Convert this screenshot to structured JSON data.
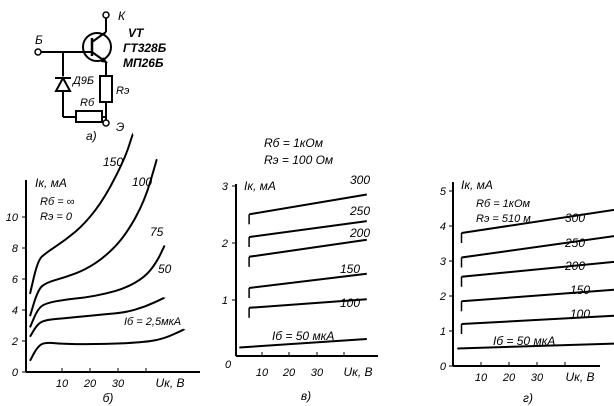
{
  "circuit": {
    "base_terminal": "Б",
    "collector_terminal": "К",
    "emitter_terminal": "Э",
    "transistor_label": "VT",
    "transistor_types": [
      "ГТ328Б",
      "МП26Б"
    ],
    "diode_label": "Д9Б",
    "rb_label": "Rб",
    "re_label": "Rэ",
    "caption": "а)"
  },
  "panels": [
    {
      "caption": "б)",
      "ylabel": "Iк, мА",
      "xlabel": "Uк, В",
      "param_lines": [
        "Rб = ∞",
        "Rэ = 0"
      ],
      "y_ticks": [
        "0",
        "2",
        "4",
        "6",
        "8",
        "10"
      ],
      "x_ticks": [
        "10",
        "20",
        "30"
      ],
      "x_origin_label": "",
      "curve_labels": [
        "150",
        "100",
        "75",
        "50",
        "Iб = 2,5мкА"
      ]
    },
    {
      "caption": "в)",
      "ylabel": "Iк, мА",
      "xlabel": "Uк, В",
      "param_lines": [
        "Rб = 1кОм",
        "Rэ = 100 Ом"
      ],
      "y_ticks": [
        "1",
        "2",
        "3"
      ],
      "x_ticks": [
        "10",
        "20",
        "30"
      ],
      "x_origin_label": "0",
      "curve_labels": [
        "300",
        "250",
        "200",
        "150",
        "100",
        "Iб = 50 мкА"
      ]
    },
    {
      "caption": "г)",
      "ylabel": "Iк, мА",
      "xlabel": "Uк, В",
      "param_lines": [
        "Rб = 1кОм",
        "Rэ = 510 м"
      ],
      "y_ticks": [
        "0",
        "1",
        "2",
        "3",
        "4",
        "5"
      ],
      "x_ticks": [
        "10",
        "20",
        "30"
      ],
      "x_origin_label": "",
      "curve_labels": [
        "300",
        "250",
        "200",
        "150",
        "100",
        "Iб = 50 мкА"
      ]
    }
  ],
  "chart_data": [
    {
      "type": "line",
      "xlabel": "Uк, В",
      "ylabel": "Iк, мА",
      "xlim": [
        0,
        40
      ],
      "ylim": [
        0,
        12
      ],
      "series": [
        {
          "name": "150",
          "x": [
            1,
            3,
            5,
            10,
            15,
            20,
            25,
            27
          ],
          "y": [
            4.2,
            6.0,
            6.4,
            7.1,
            8.0,
            9.4,
            11.5,
            12.8
          ]
        },
        {
          "name": "100",
          "x": [
            1,
            3,
            5,
            10,
            15,
            20,
            25,
            30,
            33
          ],
          "y": [
            3.0,
            4.4,
            4.8,
            5.1,
            5.5,
            6.2,
            7.3,
            9.2,
            11.4
          ]
        },
        {
          "name": "75",
          "x": [
            1,
            3,
            5,
            10,
            15,
            20,
            25,
            30,
            33,
            35
          ],
          "y": [
            2.4,
            3.4,
            3.7,
            3.9,
            4.0,
            4.2,
            4.5,
            5.1,
            5.9,
            6.8
          ]
        },
        {
          "name": "50",
          "x": [
            1,
            3,
            5,
            10,
            15,
            20,
            25,
            30,
            35
          ],
          "y": [
            1.9,
            2.6,
            2.8,
            2.9,
            3.0,
            3.1,
            3.2,
            3.5,
            4.0
          ]
        },
        {
          "name": "Iб = 2,5мкА",
          "x": [
            1,
            3,
            5,
            10,
            20,
            30,
            35,
            40
          ],
          "y": [
            0.6,
            1.4,
            1.6,
            1.5,
            1.5,
            1.6,
            1.8,
            2.3
          ]
        }
      ]
    },
    {
      "type": "line",
      "xlabel": "Uк, В",
      "ylabel": "Iк, мА",
      "xlim": [
        0,
        40
      ],
      "ylim": [
        0,
        3
      ],
      "series": [
        {
          "name": "300",
          "x": [
            4,
            40
          ],
          "y": [
            2.5,
            2.85
          ]
        },
        {
          "name": "250",
          "x": [
            4,
            40
          ],
          "y": [
            2.1,
            2.38
          ]
        },
        {
          "name": "200",
          "x": [
            4,
            40
          ],
          "y": [
            1.75,
            2.05
          ]
        },
        {
          "name": "150",
          "x": [
            4,
            40
          ],
          "y": [
            1.2,
            1.45
          ]
        },
        {
          "name": "100",
          "x": [
            4,
            40
          ],
          "y": [
            0.85,
            1.0
          ]
        },
        {
          "name": "Iб = 50 мкА",
          "x": [
            1,
            40
          ],
          "y": [
            0.15,
            0.3
          ]
        }
      ]
    },
    {
      "type": "line",
      "xlabel": "Uк, В",
      "ylabel": "Iк, мА",
      "xlim": [
        0,
        40
      ],
      "ylim": [
        0,
        5.5
      ],
      "series": [
        {
          "name": "300",
          "x": [
            2,
            40
          ],
          "y": [
            3.8,
            4.5
          ]
        },
        {
          "name": "250",
          "x": [
            2,
            40
          ],
          "y": [
            3.1,
            3.75
          ]
        },
        {
          "name": "200",
          "x": [
            2,
            40
          ],
          "y": [
            2.55,
            3.0
          ]
        },
        {
          "name": "150",
          "x": [
            2,
            40
          ],
          "y": [
            1.85,
            2.2
          ]
        },
        {
          "name": "100",
          "x": [
            2,
            40
          ],
          "y": [
            1.2,
            1.45
          ]
        },
        {
          "name": "Iб = 50 мкА",
          "x": [
            1,
            40
          ],
          "y": [
            0.5,
            0.65
          ]
        }
      ]
    }
  ]
}
